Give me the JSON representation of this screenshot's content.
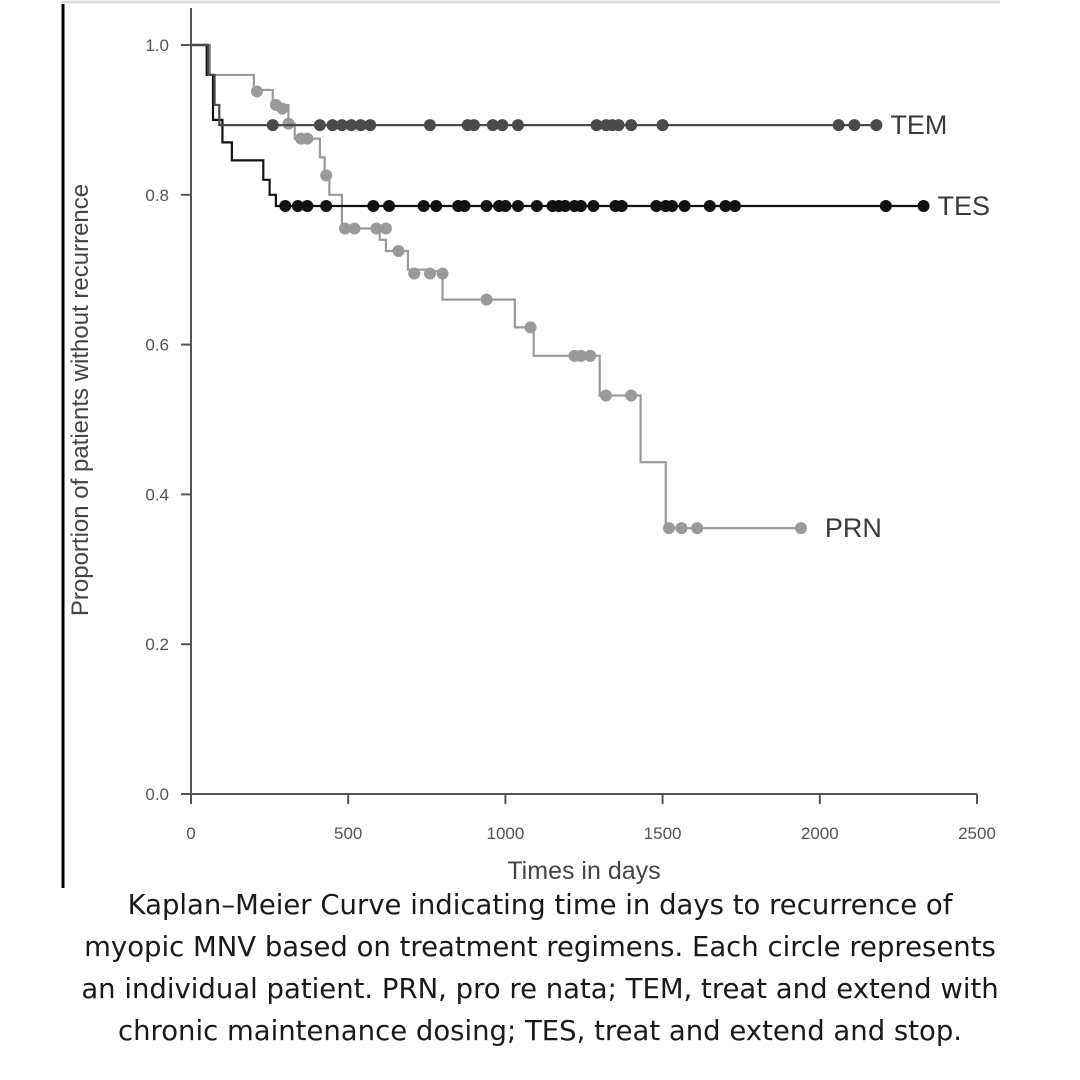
{
  "chart_data": {
    "type": "line",
    "step": true,
    "xlabel": "Times in days",
    "ylabel": "Proportion of patients without recurrence",
    "xlim": [
      0,
      2500
    ],
    "ylim": [
      0.0,
      1.0
    ],
    "xticks": [
      "0",
      "500",
      "1000",
      "1500",
      "2000",
      "2500"
    ],
    "yticks": [
      "0.0",
      "0.2",
      "0.4",
      "0.6",
      "0.8",
      "1.0"
    ],
    "grid": false,
    "series": [
      {
        "name": "TEM",
        "color": "#4a4a4a",
        "steps": [
          [
            0,
            1.0
          ],
          [
            55,
            0.96
          ],
          [
            75,
            0.92
          ],
          [
            90,
            0.893
          ],
          [
            2180,
            0.893
          ]
        ],
        "censored": [
          [
            260,
            0.893
          ],
          [
            410,
            0.893
          ],
          [
            450,
            0.893
          ],
          [
            480,
            0.893
          ],
          [
            510,
            0.893
          ],
          [
            540,
            0.893
          ],
          [
            570,
            0.893
          ],
          [
            760,
            0.893
          ],
          [
            880,
            0.893
          ],
          [
            900,
            0.893
          ],
          [
            960,
            0.893
          ],
          [
            990,
            0.893
          ],
          [
            1040,
            0.893
          ],
          [
            1290,
            0.893
          ],
          [
            1320,
            0.893
          ],
          [
            1340,
            0.893
          ],
          [
            1360,
            0.893
          ],
          [
            1400,
            0.893
          ],
          [
            1500,
            0.893
          ],
          [
            2060,
            0.893
          ],
          [
            2110,
            0.893
          ],
          [
            2180,
            0.893
          ]
        ]
      },
      {
        "name": "TES",
        "color": "#111111",
        "steps": [
          [
            0,
            1.0
          ],
          [
            50,
            0.96
          ],
          [
            70,
            0.9
          ],
          [
            100,
            0.87
          ],
          [
            130,
            0.846
          ],
          [
            230,
            0.82
          ],
          [
            250,
            0.8
          ],
          [
            270,
            0.785
          ],
          [
            2330,
            0.785
          ]
        ],
        "censored": [
          [
            300,
            0.785
          ],
          [
            340,
            0.785
          ],
          [
            370,
            0.785
          ],
          [
            430,
            0.785
          ],
          [
            580,
            0.785
          ],
          [
            630,
            0.785
          ],
          [
            740,
            0.785
          ],
          [
            780,
            0.785
          ],
          [
            850,
            0.785
          ],
          [
            870,
            0.785
          ],
          [
            940,
            0.785
          ],
          [
            980,
            0.785
          ],
          [
            1000,
            0.785
          ],
          [
            1040,
            0.785
          ],
          [
            1100,
            0.785
          ],
          [
            1150,
            0.785
          ],
          [
            1170,
            0.785
          ],
          [
            1190,
            0.785
          ],
          [
            1220,
            0.785
          ],
          [
            1240,
            0.785
          ],
          [
            1280,
            0.785
          ],
          [
            1350,
            0.785
          ],
          [
            1370,
            0.785
          ],
          [
            1480,
            0.785
          ],
          [
            1510,
            0.785
          ],
          [
            1530,
            0.785
          ],
          [
            1570,
            0.785
          ],
          [
            1650,
            0.785
          ],
          [
            1700,
            0.785
          ],
          [
            1730,
            0.785
          ],
          [
            2210,
            0.785
          ],
          [
            2330,
            0.785
          ]
        ]
      },
      {
        "name": "PRN",
        "color": "#9a9a9a",
        "steps": [
          [
            0,
            1.0
          ],
          [
            60,
            0.96
          ],
          [
            200,
            0.94
          ],
          [
            260,
            0.92
          ],
          [
            310,
            0.895
          ],
          [
            330,
            0.875
          ],
          [
            410,
            0.85
          ],
          [
            425,
            0.83
          ],
          [
            440,
            0.8
          ],
          [
            480,
            0.755
          ],
          [
            600,
            0.74
          ],
          [
            620,
            0.725
          ],
          [
            690,
            0.7
          ],
          [
            760,
            0.698
          ],
          [
            800,
            0.66
          ],
          [
            1030,
            0.623
          ],
          [
            1090,
            0.585
          ],
          [
            1300,
            0.532
          ],
          [
            1430,
            0.443
          ],
          [
            1510,
            0.355
          ],
          [
            1940,
            0.355
          ]
        ],
        "censored": [
          [
            210,
            0.938
          ],
          [
            270,
            0.92
          ],
          [
            290,
            0.915
          ],
          [
            310,
            0.895
          ],
          [
            350,
            0.875
          ],
          [
            370,
            0.875
          ],
          [
            430,
            0.826
          ],
          [
            490,
            0.755
          ],
          [
            520,
            0.755
          ],
          [
            590,
            0.755
          ],
          [
            620,
            0.755
          ],
          [
            660,
            0.725
          ],
          [
            710,
            0.695
          ],
          [
            760,
            0.695
          ],
          [
            800,
            0.695
          ],
          [
            940,
            0.66
          ],
          [
            1080,
            0.623
          ],
          [
            1220,
            0.585
          ],
          [
            1240,
            0.585
          ],
          [
            1270,
            0.585
          ],
          [
            1320,
            0.532
          ],
          [
            1400,
            0.532
          ],
          [
            1520,
            0.355
          ],
          [
            1560,
            0.355
          ],
          [
            1610,
            0.355
          ],
          [
            1940,
            0.355
          ]
        ]
      }
    ]
  },
  "caption": [
    "Kaplan–Meier Curve indicating time in days to recurrence of",
    "myopic MNV based on treatment regimens. Each circle represents",
    "an individual patient. PRN, pro re nata; TEM, treat and extend with",
    "chronic maintenance dosing; TES, treat and extend and stop."
  ]
}
